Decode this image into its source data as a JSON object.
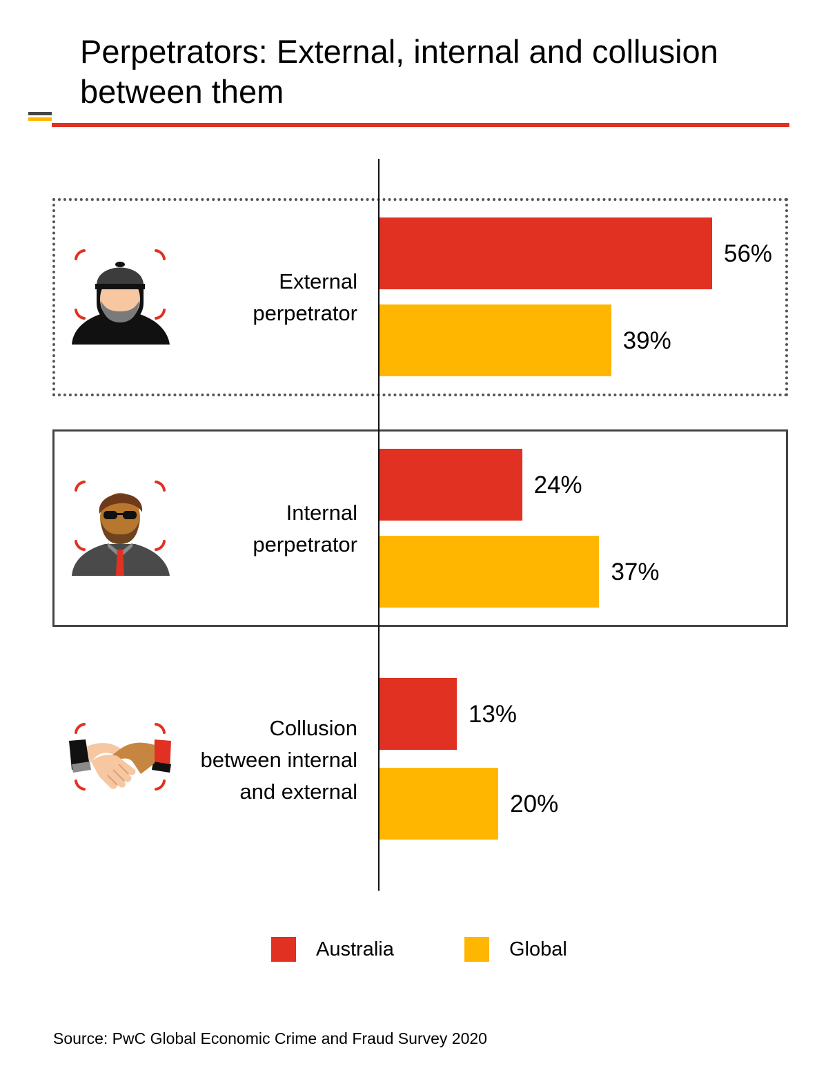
{
  "chart_data": {
    "type": "bar",
    "orientation": "horizontal",
    "title": "Perpetrators: External, internal and collusion between them",
    "categories": [
      "External\nperpetrator",
      "Internal\nperpetrator",
      "Collusion\nbetween internal\nand external"
    ],
    "series": [
      {
        "name": "Australia",
        "values": [
          56,
          24,
          13
        ],
        "color": "#e03122"
      },
      {
        "name": "Global",
        "values": [
          39,
          37,
          20
        ],
        "color": "#ffb600"
      }
    ],
    "value_labels": [
      [
        "56%",
        "39%"
      ],
      [
        "24%",
        "37%"
      ],
      [
        "13%",
        "20%"
      ]
    ],
    "xlim": [
      0,
      65
    ],
    "grid": false,
    "legend_position": "bottom-center"
  },
  "colors": {
    "accent_red": "#e03122",
    "accent_yellow": "#ffb600",
    "dark_gray": "#464646"
  },
  "icons": [
    "hooded-hacker-icon",
    "businessman-sunglasses-icon",
    "handshake-icon"
  ],
  "source": "Source: PwC Global Economic Crime and Fraud Survey 2020"
}
